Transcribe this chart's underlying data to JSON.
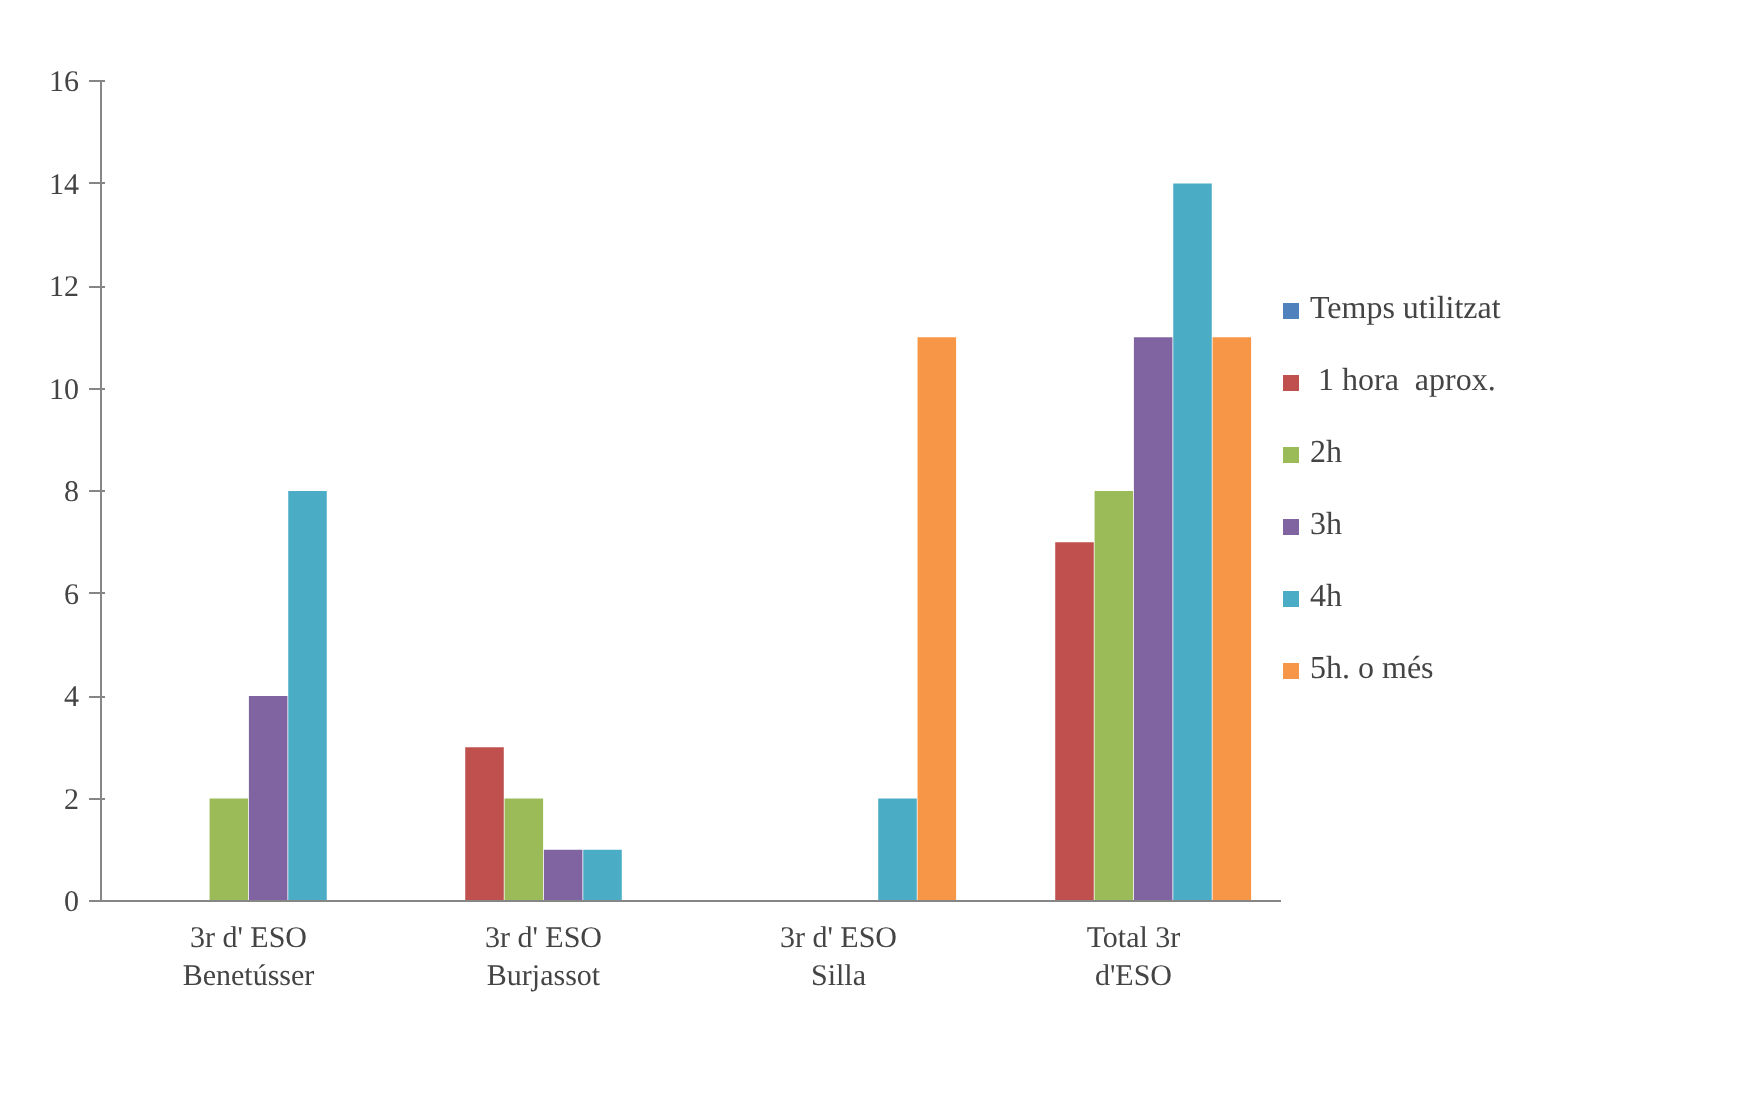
{
  "chart_data": {
    "type": "bar",
    "categories": [
      "3r d' ESO\nBenetússer",
      "3r d' ESO\nBurjassot",
      "3r d' ESO\nSilla",
      "Total 3r\nd'ESO"
    ],
    "series": [
      {
        "name": "Temps utilitzat",
        "color": "#4f81bd",
        "values": [
          0,
          0,
          0,
          0
        ]
      },
      {
        "name": " 1 hora  aprox.",
        "color": "#c0504d",
        "values": [
          0,
          3,
          0,
          7
        ]
      },
      {
        "name": "2h",
        "color": "#9bbb59",
        "values": [
          2,
          2,
          0,
          8
        ]
      },
      {
        "name": "3h",
        "color": "#8064a2",
        "values": [
          4,
          1,
          0,
          11
        ]
      },
      {
        "name": "4h",
        "color": "#4bacc6",
        "values": [
          8,
          1,
          2,
          14
        ]
      },
      {
        "name": "5h. o més",
        "color": "#f79646",
        "values": [
          0,
          0,
          11,
          11
        ]
      }
    ],
    "ylim": [
      0,
      16
    ],
    "yticks": [
      0,
      2,
      4,
      6,
      8,
      10,
      12,
      14,
      16
    ],
    "grid": false,
    "legend": "right"
  }
}
